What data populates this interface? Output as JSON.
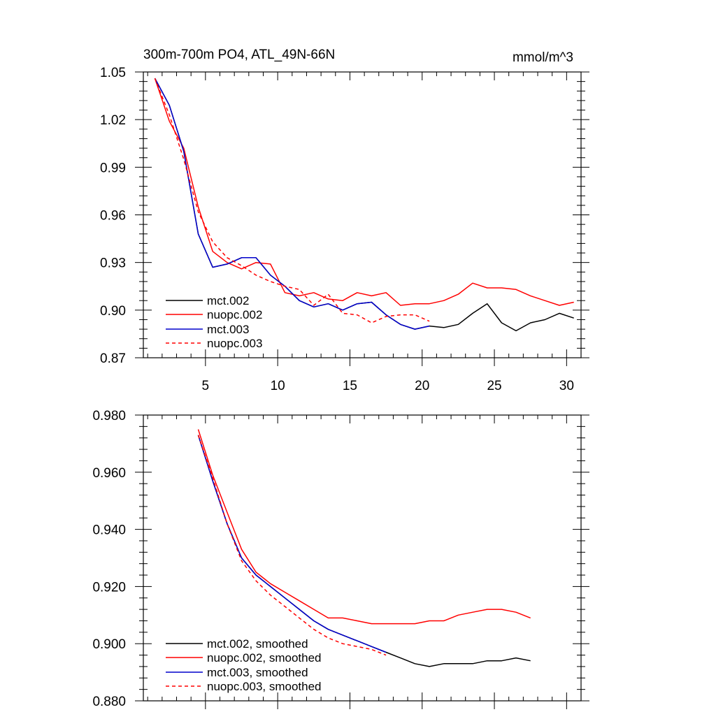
{
  "chart_data": [
    {
      "type": "line",
      "title": "300m-700m PO4, ATL_49N-66N",
      "units": "mmol/m^3",
      "xlim": [
        0.7,
        31.0
      ],
      "ylim": [
        0.87,
        1.05
      ],
      "xticks": [
        5,
        10,
        15,
        20,
        25,
        30
      ],
      "yticks": [
        0.87,
        0.9,
        0.93,
        0.96,
        0.99,
        1.02,
        1.05
      ],
      "ytick_labels": [
        "0.87",
        "0.90",
        "0.93",
        "0.96",
        "0.99",
        "1.02",
        "1.05"
      ],
      "legend_position": "bottom-left",
      "series": [
        {
          "name": "mct.002",
          "color": "#000000",
          "dash": "solid",
          "x": [
            1.5,
            2.5,
            3.5,
            4.5,
            5.5,
            6.5,
            7.5,
            8.5,
            9.5,
            10.5,
            11.5,
            12.5,
            13.5,
            14.5,
            15.5,
            16.5,
            17.5,
            18.5,
            19.5,
            20.5,
            21.5,
            22.5,
            23.5,
            24.5,
            25.5,
            26.5,
            27.5,
            28.5,
            29.5,
            30.5
          ],
          "y": [
            1.046,
            1.029,
            1.0,
            0.948,
            0.927,
            0.929,
            0.933,
            0.933,
            0.922,
            0.915,
            0.906,
            0.902,
            0.904,
            0.9,
            0.904,
            0.905,
            0.897,
            0.891,
            0.888,
            0.89,
            0.889,
            0.891,
            0.898,
            0.904,
            0.892,
            0.887,
            0.892,
            0.894,
            0.898,
            0.895
          ]
        },
        {
          "name": "nuopc.002",
          "color": "#ff0000",
          "dash": "solid",
          "x": [
            1.5,
            2.5,
            3.5,
            4.5,
            5.5,
            6.5,
            7.5,
            8.5,
            9.5,
            10.5,
            11.5,
            12.5,
            13.5,
            14.5,
            15.5,
            16.5,
            17.5,
            18.5,
            19.5,
            20.5,
            21.5,
            22.5,
            23.5,
            24.5,
            25.5,
            26.5,
            27.5,
            28.5,
            29.5,
            30.5
          ],
          "y": [
            1.046,
            1.019,
            1.002,
            0.965,
            0.937,
            0.93,
            0.926,
            0.93,
            0.929,
            0.911,
            0.909,
            0.911,
            0.907,
            0.906,
            0.911,
            0.909,
            0.911,
            0.903,
            0.904,
            0.904,
            0.906,
            0.91,
            0.917,
            0.914,
            0.914,
            0.913,
            0.909,
            0.906,
            0.903,
            0.905
          ]
        },
        {
          "name": "mct.003",
          "color": "#0000cc",
          "dash": "solid",
          "x": [
            1.5,
            2.5,
            3.5,
            4.5,
            5.5,
            6.5,
            7.5,
            8.5,
            9.5,
            10.5,
            11.5,
            12.5,
            13.5,
            14.5,
            15.5,
            16.5,
            17.5,
            18.5,
            19.5,
            20.5
          ],
          "y": [
            1.046,
            1.029,
            1.0,
            0.948,
            0.927,
            0.929,
            0.933,
            0.933,
            0.922,
            0.915,
            0.906,
            0.902,
            0.904,
            0.9,
            0.904,
            0.905,
            0.897,
            0.891,
            0.888,
            0.89
          ]
        },
        {
          "name": "nuopc.003",
          "color": "#ff0000",
          "dash": "dashed",
          "x": [
            1.5,
            2.5,
            3.5,
            4.5,
            5.5,
            6.5,
            7.5,
            8.5,
            9.5,
            10.5,
            11.5,
            12.5,
            13.5,
            14.5,
            15.5,
            16.5,
            17.5,
            18.5,
            19.5,
            20.5
          ],
          "y": [
            1.046,
            1.023,
            0.995,
            0.962,
            0.943,
            0.933,
            0.928,
            0.922,
            0.918,
            0.915,
            0.913,
            0.903,
            0.91,
            0.898,
            0.897,
            0.892,
            0.896,
            0.897,
            0.897,
            0.893
          ]
        }
      ]
    },
    {
      "type": "line",
      "title": "",
      "xlim": [
        0.7,
        31.0
      ],
      "ylim": [
        0.88,
        0.98
      ],
      "xticks": [
        5,
        10,
        15,
        20,
        25,
        30
      ],
      "yticks": [
        0.88,
        0.9,
        0.92,
        0.94,
        0.96,
        0.98
      ],
      "ytick_labels": [
        "0.880",
        "0.900",
        "0.920",
        "0.940",
        "0.960",
        "0.980"
      ],
      "show_xtick_labels": false,
      "legend_position": "bottom-left",
      "series": [
        {
          "name": "mct.002, smoothed",
          "color": "#000000",
          "dash": "solid",
          "x": [
            4.5,
            5.5,
            6.5,
            7.5,
            8.5,
            9.5,
            10.5,
            11.5,
            12.5,
            13.5,
            14.5,
            15.5,
            16.5,
            17.5,
            18.5,
            19.5,
            20.5,
            21.5,
            22.5,
            23.5,
            24.5,
            25.5,
            26.5,
            27.5
          ],
          "y": [
            0.973,
            0.957,
            0.942,
            0.93,
            0.924,
            0.92,
            0.916,
            0.912,
            0.908,
            0.905,
            0.903,
            0.901,
            0.899,
            0.897,
            0.895,
            0.893,
            0.892,
            0.893,
            0.893,
            0.893,
            0.894,
            0.894,
            0.895,
            0.894
          ]
        },
        {
          "name": "nuopc.002, smoothed",
          "color": "#ff0000",
          "dash": "solid",
          "x": [
            4.5,
            5.5,
            6.5,
            7.5,
            8.5,
            9.5,
            10.5,
            11.5,
            12.5,
            13.5,
            14.5,
            15.5,
            16.5,
            17.5,
            18.5,
            19.5,
            20.5,
            21.5,
            22.5,
            23.5,
            24.5,
            25.5,
            26.5,
            27.5
          ],
          "y": [
            0.975,
            0.959,
            0.946,
            0.933,
            0.925,
            0.921,
            0.918,
            0.915,
            0.912,
            0.909,
            0.909,
            0.908,
            0.907,
            0.907,
            0.907,
            0.907,
            0.908,
            0.908,
            0.91,
            0.911,
            0.912,
            0.912,
            0.911,
            0.909
          ]
        },
        {
          "name": "mct.003, smoothed",
          "color": "#0000cc",
          "dash": "solid",
          "x": [
            4.5,
            5.5,
            6.5,
            7.5,
            8.5,
            9.5,
            10.5,
            11.5,
            12.5,
            13.5,
            14.5,
            15.5,
            16.5,
            17.5
          ],
          "y": [
            0.973,
            0.957,
            0.942,
            0.93,
            0.924,
            0.92,
            0.916,
            0.912,
            0.908,
            0.905,
            0.903,
            0.901,
            0.899,
            0.897
          ]
        },
        {
          "name": "nuopc.003, smoothed",
          "color": "#ff0000",
          "dash": "dashed",
          "x": [
            4.5,
            5.5,
            6.5,
            7.5,
            8.5,
            9.5,
            10.5,
            11.5,
            12.5,
            13.5,
            14.5,
            15.5,
            16.5,
            17.5
          ],
          "y": [
            0.973,
            0.958,
            0.942,
            0.929,
            0.922,
            0.917,
            0.913,
            0.909,
            0.905,
            0.902,
            0.9,
            0.899,
            0.898,
            0.896
          ]
        }
      ]
    }
  ]
}
